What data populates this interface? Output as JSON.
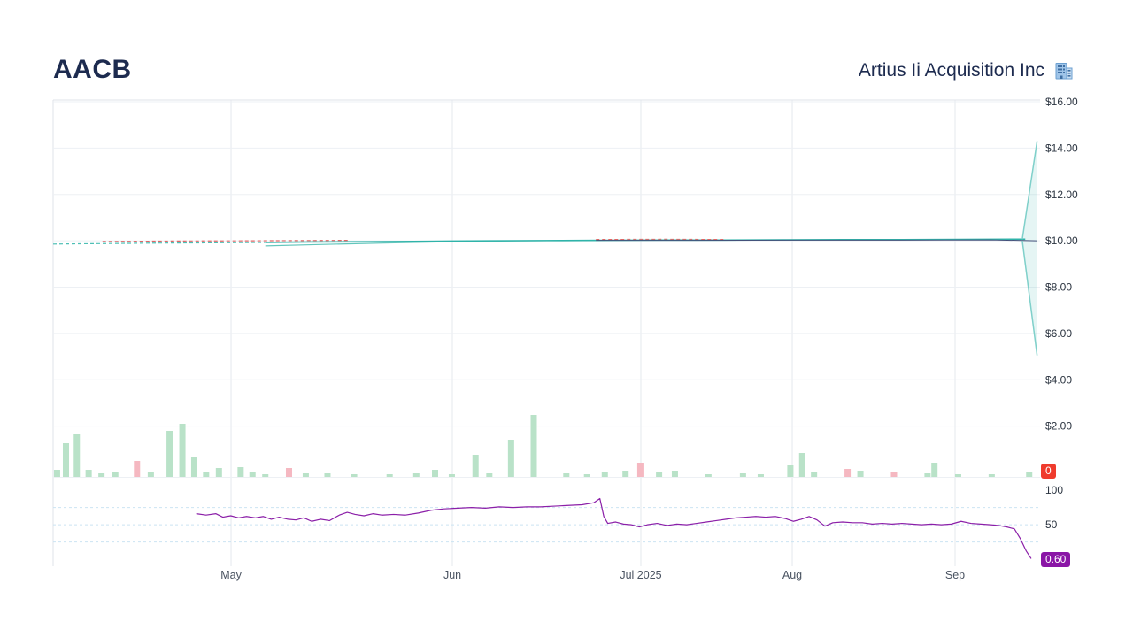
{
  "header": {
    "symbol": "AACB",
    "company": "Artius Ii Acquisition Inc"
  },
  "badges": {
    "volume_zero": "0",
    "indicator_value": "0.60"
  },
  "colors": {
    "accent_teal": "#2fb3a9",
    "spike_teal": "#7fd0ca",
    "navy_line": "#44507a",
    "red_dash": "#e06666",
    "purple": "#8b1fa8",
    "volume_up": "#b9e2c8",
    "volume_down": "#f5b8c1",
    "grid": "#edf0f4",
    "vgrid": "#e4e8ee",
    "ind_grid": "#cbe4f2",
    "axis_text": "#2b3440",
    "x_text": "#4a5361",
    "border": "#dfe3e9"
  },
  "chart_data": {
    "type": "line",
    "title": "AACB — Artius Ii Acquisition Inc stock price with volume and indicator panel",
    "legend": "off",
    "grid": "on",
    "price_axis": {
      "side": "right",
      "range": [
        0,
        16
      ],
      "ticks": [
        {
          "value": 16,
          "label": "$16.00"
        },
        {
          "value": 14,
          "label": "$14.00"
        },
        {
          "value": 12,
          "label": "$12.00"
        },
        {
          "value": 10,
          "label": "$10.00"
        },
        {
          "value": 8,
          "label": "$8.00"
        },
        {
          "value": 6,
          "label": "$6.00"
        },
        {
          "value": 4,
          "label": "$4.00"
        },
        {
          "value": 2,
          "label": "$2.00"
        }
      ]
    },
    "x_axis": {
      "ticks": [
        {
          "pos": 0.1803,
          "label": "May"
        },
        {
          "pos": 0.4045,
          "label": "Jun"
        },
        {
          "pos": 0.5955,
          "label": "Jul 2025"
        },
        {
          "pos": 0.7489,
          "label": "Aug"
        },
        {
          "pos": 0.9139,
          "label": "Sep"
        }
      ]
    },
    "series": [
      {
        "name": "pre-listing-dashed-teal",
        "color": "#4dbfb5",
        "width": 1.2,
        "dash": "4,3",
        "points": [
          [
            0.0,
            9.86
          ],
          [
            0.05,
            9.88
          ],
          [
            0.1,
            9.9
          ],
          [
            0.15,
            9.91
          ],
          [
            0.215,
            9.93
          ]
        ]
      },
      {
        "name": "pre-listing-dashed-red",
        "color": "#e06666",
        "width": 1.2,
        "dash": "4,3",
        "points": [
          [
            0.05,
            9.97
          ],
          [
            0.12,
            9.99
          ],
          [
            0.2,
            10.0
          ],
          [
            0.3,
            10.02
          ]
        ]
      },
      {
        "name": "price-lower-band",
        "color": "#63c6bc",
        "width": 1.2,
        "points": [
          [
            0.215,
            9.78
          ],
          [
            0.27,
            9.84
          ],
          [
            0.33,
            9.9
          ],
          [
            0.4,
            9.96
          ],
          [
            0.47,
            10.0
          ],
          [
            0.55,
            10.02
          ]
        ]
      },
      {
        "name": "price-close",
        "color": "#2fb3a9",
        "width": 1.6,
        "points": [
          [
            0.215,
            9.93
          ],
          [
            0.26,
            9.95
          ],
          [
            0.32,
            9.96
          ],
          [
            0.38,
            9.98
          ],
          [
            0.44,
            10.0
          ],
          [
            0.5,
            10.01
          ],
          [
            0.56,
            10.02
          ],
          [
            0.62,
            10.03
          ],
          [
            0.68,
            10.03
          ],
          [
            0.74,
            10.04
          ],
          [
            0.8,
            10.05
          ],
          [
            0.86,
            10.05
          ],
          [
            0.92,
            10.06
          ],
          [
            0.985,
            10.07
          ]
        ]
      },
      {
        "name": "price-overlay-navy",
        "color": "#44507a",
        "width": 1.0,
        "points": [
          [
            0.55,
            10.02
          ],
          [
            0.65,
            10.02
          ],
          [
            0.75,
            10.03
          ],
          [
            0.85,
            10.03
          ],
          [
            0.95,
            10.04
          ],
          [
            0.997,
            10.0
          ]
        ]
      },
      {
        "name": "mid-dashed-red",
        "color": "#e06666",
        "width": 1.0,
        "dash": "4,3",
        "points": [
          [
            0.55,
            10.06
          ],
          [
            0.62,
            10.07
          ],
          [
            0.68,
            10.06
          ]
        ]
      },
      {
        "name": "range-spike-up",
        "color": "#7fd0ca",
        "width": 1.5,
        "points": [
          [
            0.982,
            10.07
          ],
          [
            0.997,
            14.3
          ]
        ]
      },
      {
        "name": "range-spike-down",
        "color": "#7fd0ca",
        "width": 1.5,
        "points": [
          [
            0.982,
            10.0
          ],
          [
            0.997,
            5.05
          ]
        ]
      }
    ],
    "fan": {
      "fill": "rgba(82,186,178,0.15)",
      "points": [
        [
          0.982,
          10.05
        ],
        [
          0.997,
          14.3
        ],
        [
          0.997,
          5.05
        ]
      ]
    },
    "volume": {
      "baseline_label": "0",
      "bars": [
        [
          0.004,
          8,
          0
        ],
        [
          0.013,
          38,
          0
        ],
        [
          0.024,
          48,
          0
        ],
        [
          0.036,
          8,
          0
        ],
        [
          0.049,
          4,
          0
        ],
        [
          0.063,
          5,
          0
        ],
        [
          0.085,
          18,
          1
        ],
        [
          0.099,
          6,
          0
        ],
        [
          0.118,
          52,
          0
        ],
        [
          0.131,
          60,
          0
        ],
        [
          0.143,
          22,
          0
        ],
        [
          0.155,
          5,
          0
        ],
        [
          0.168,
          10,
          0
        ],
        [
          0.19,
          11,
          0
        ],
        [
          0.202,
          5,
          0
        ],
        [
          0.215,
          3,
          0
        ],
        [
          0.239,
          10,
          1
        ],
        [
          0.256,
          4,
          0
        ],
        [
          0.278,
          4,
          0
        ],
        [
          0.305,
          3,
          0
        ],
        [
          0.341,
          3,
          0
        ],
        [
          0.368,
          4,
          0
        ],
        [
          0.387,
          8,
          0
        ],
        [
          0.404,
          3,
          0
        ],
        [
          0.428,
          25,
          0
        ],
        [
          0.442,
          4,
          0
        ],
        [
          0.464,
          42,
          0
        ],
        [
          0.487,
          70,
          0
        ],
        [
          0.52,
          4,
          0
        ],
        [
          0.541,
          3,
          0
        ],
        [
          0.559,
          5,
          0
        ],
        [
          0.58,
          7,
          0
        ],
        [
          0.595,
          16,
          1
        ],
        [
          0.614,
          5,
          0
        ],
        [
          0.63,
          7,
          0
        ],
        [
          0.664,
          3,
          0
        ],
        [
          0.699,
          4,
          0
        ],
        [
          0.717,
          3,
          0
        ],
        [
          0.747,
          13,
          0
        ],
        [
          0.759,
          27,
          0
        ],
        [
          0.771,
          6,
          0
        ],
        [
          0.805,
          9,
          1
        ],
        [
          0.818,
          7,
          0
        ],
        [
          0.852,
          5,
          1
        ],
        [
          0.886,
          4,
          0
        ],
        [
          0.893,
          16,
          0
        ],
        [
          0.917,
          3,
          0
        ],
        [
          0.951,
          3,
          0
        ],
        [
          0.989,
          6,
          0
        ]
      ]
    },
    "indicator": {
      "name": "lower-panel-indicator",
      "last_value": "0.60",
      "range": [
        0,
        100
      ],
      "ticks": [
        {
          "value": 100,
          "label": "100"
        },
        {
          "value": 50,
          "label": "50"
        }
      ],
      "grid": [
        75,
        50,
        25
      ],
      "points": [
        [
          0.145,
          66
        ],
        [
          0.155,
          64
        ],
        [
          0.165,
          66
        ],
        [
          0.172,
          61
        ],
        [
          0.18,
          63
        ],
        [
          0.188,
          60
        ],
        [
          0.196,
          62
        ],
        [
          0.205,
          60
        ],
        [
          0.213,
          62
        ],
        [
          0.221,
          58
        ],
        [
          0.229,
          61
        ],
        [
          0.238,
          58
        ],
        [
          0.246,
          57
        ],
        [
          0.254,
          60
        ],
        [
          0.262,
          55
        ],
        [
          0.271,
          58
        ],
        [
          0.28,
          56
        ],
        [
          0.29,
          64
        ],
        [
          0.298,
          68
        ],
        [
          0.306,
          65
        ],
        [
          0.315,
          63
        ],
        [
          0.324,
          66
        ],
        [
          0.333,
          64
        ],
        [
          0.345,
          65
        ],
        [
          0.357,
          64
        ],
        [
          0.37,
          67
        ],
        [
          0.383,
          71
        ],
        [
          0.396,
          73
        ],
        [
          0.41,
          74
        ],
        [
          0.424,
          75
        ],
        [
          0.438,
          74
        ],
        [
          0.452,
          76
        ],
        [
          0.466,
          75
        ],
        [
          0.48,
          76
        ],
        [
          0.494,
          76
        ],
        [
          0.508,
          77
        ],
        [
          0.522,
          78
        ],
        [
          0.536,
          79
        ],
        [
          0.548,
          82
        ],
        [
          0.554,
          88
        ],
        [
          0.558,
          62
        ],
        [
          0.562,
          52
        ],
        [
          0.57,
          54
        ],
        [
          0.578,
          51
        ],
        [
          0.586,
          50
        ],
        [
          0.594,
          47
        ],
        [
          0.602,
          50
        ],
        [
          0.612,
          52
        ],
        [
          0.622,
          49
        ],
        [
          0.632,
          51
        ],
        [
          0.642,
          50
        ],
        [
          0.652,
          52
        ],
        [
          0.662,
          54
        ],
        [
          0.672,
          56
        ],
        [
          0.682,
          58
        ],
        [
          0.692,
          60
        ],
        [
          0.702,
          61
        ],
        [
          0.712,
          62
        ],
        [
          0.722,
          61
        ],
        [
          0.732,
          62
        ],
        [
          0.742,
          59
        ],
        [
          0.75,
          55
        ],
        [
          0.758,
          58
        ],
        [
          0.766,
          62
        ],
        [
          0.774,
          57
        ],
        [
          0.782,
          48
        ],
        [
          0.79,
          53
        ],
        [
          0.8,
          54
        ],
        [
          0.81,
          53
        ],
        [
          0.82,
          53
        ],
        [
          0.83,
          51
        ],
        [
          0.84,
          52
        ],
        [
          0.85,
          51
        ],
        [
          0.86,
          52
        ],
        [
          0.87,
          51
        ],
        [
          0.88,
          50
        ],
        [
          0.89,
          51
        ],
        [
          0.9,
          50
        ],
        [
          0.91,
          51
        ],
        [
          0.92,
          55
        ],
        [
          0.93,
          52
        ],
        [
          0.94,
          51
        ],
        [
          0.95,
          50
        ],
        [
          0.958,
          49
        ],
        [
          0.966,
          47
        ],
        [
          0.974,
          44
        ],
        [
          0.98,
          30
        ],
        [
          0.986,
          12
        ],
        [
          0.991,
          1
        ]
      ]
    }
  }
}
